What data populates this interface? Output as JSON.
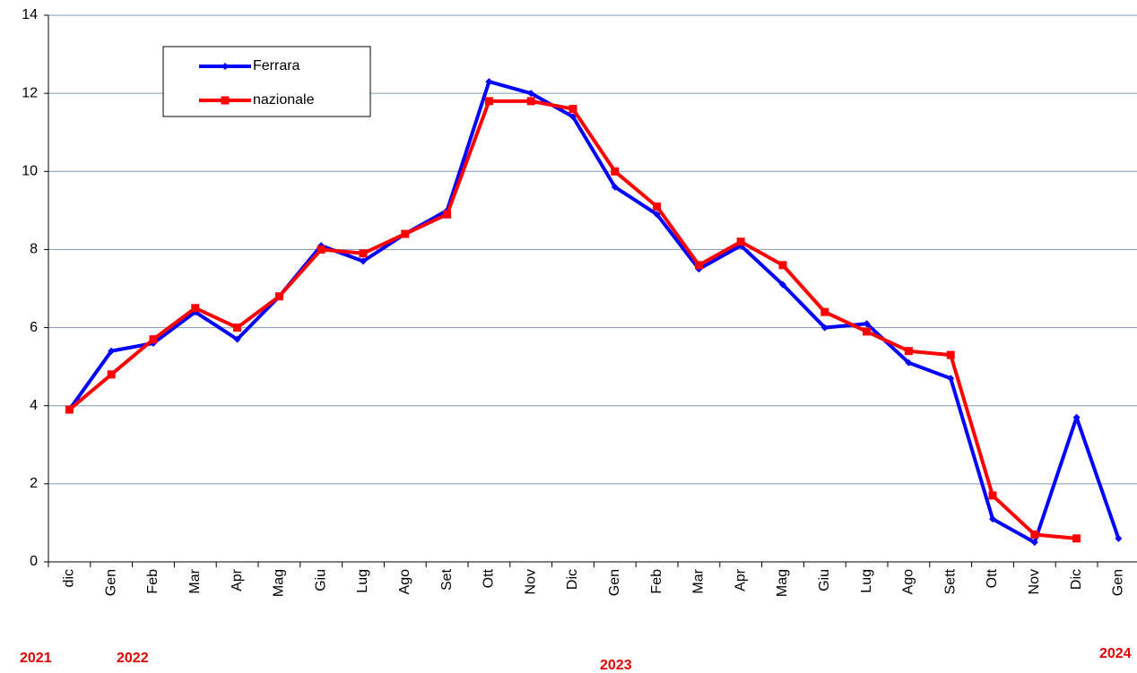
{
  "chart_data": {
    "type": "line",
    "categories": [
      "dic",
      "Gen",
      "Feb",
      "Mar",
      "Apr",
      "Mag",
      "Giu",
      "Lug",
      "Ago",
      "Set",
      "Ott",
      "Nov",
      "Dic",
      "Gen",
      "Feb",
      "Mar",
      "Apr",
      "Mag",
      "Giu",
      "Lug",
      "Ago",
      "Sett",
      "Ott",
      "Nov",
      "Dic",
      "Gen"
    ],
    "series": [
      {
        "name": "Ferrara",
        "color": "#0000ff",
        "marker": "diamond",
        "values": [
          3.9,
          5.4,
          5.6,
          6.4,
          5.7,
          6.8,
          8.1,
          7.7,
          8.4,
          9.0,
          12.3,
          12.0,
          11.4,
          9.6,
          8.9,
          7.5,
          8.1,
          7.1,
          6.0,
          6.1,
          5.1,
          4.7,
          1.1,
          0.5,
          3.7,
          0.6
        ]
      },
      {
        "name": "nazionale",
        "color": "#ff0000",
        "marker": "square",
        "values": [
          3.9,
          4.8,
          5.7,
          6.5,
          6.0,
          6.8,
          8.0,
          7.9,
          8.4,
          8.9,
          11.8,
          11.8,
          11.6,
          10.0,
          9.1,
          7.6,
          8.2,
          7.6,
          6.4,
          5.9,
          5.4,
          5.3,
          1.7,
          0.7,
          0.6,
          null
        ]
      }
    ],
    "ylim": [
      0,
      14
    ],
    "yticks": [
      0,
      2,
      4,
      6,
      8,
      10,
      12,
      14
    ],
    "grid": true,
    "year_labels": [
      "2021",
      "2022",
      "2023",
      "2024"
    ]
  }
}
